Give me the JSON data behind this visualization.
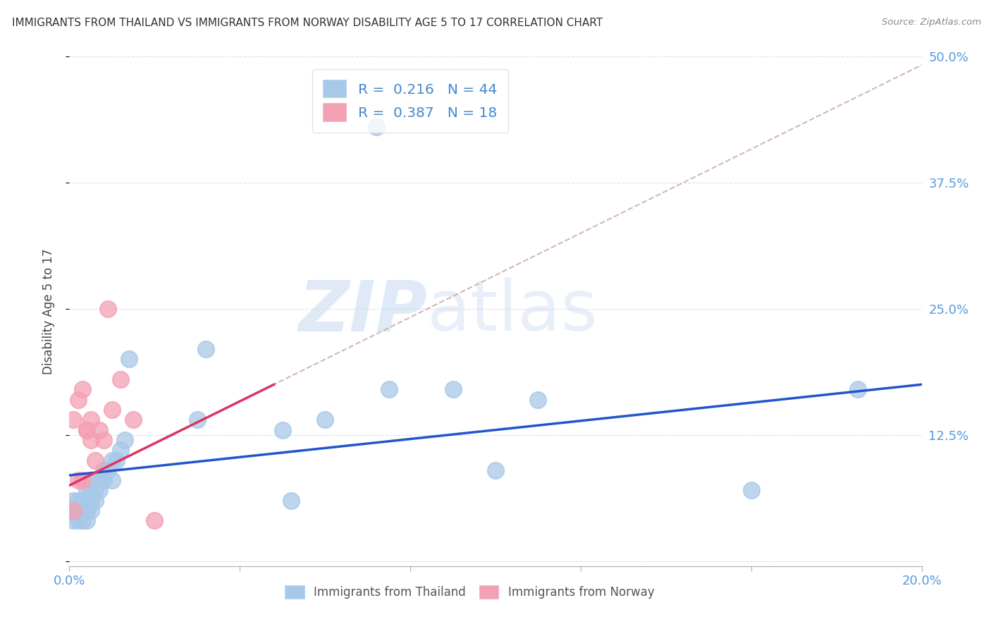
{
  "title": "IMMIGRANTS FROM THAILAND VS IMMIGRANTS FROM NORWAY DISABILITY AGE 5 TO 17 CORRELATION CHART",
  "source": "Source: ZipAtlas.com",
  "ylabel": "Disability Age 5 to 17",
  "right_yticklabels": [
    "",
    "12.5%",
    "25.0%",
    "37.5%",
    "50.0%"
  ],
  "xlim": [
    0.0,
    0.2
  ],
  "ylim": [
    -0.005,
    0.5
  ],
  "thailand_R": 0.216,
  "thailand_N": 44,
  "norway_R": 0.387,
  "norway_N": 18,
  "thailand_color": "#a8c8e8",
  "norway_color": "#f4a0b4",
  "thailand_line_color": "#2255cc",
  "norway_line_color": "#dd3366",
  "diagonal_color": "#ccaaaa",
  "background_color": "#ffffff",
  "watermark_zip": "ZIP",
  "watermark_atlas": "atlas",
  "thailand_x": [
    0.001,
    0.001,
    0.001,
    0.002,
    0.002,
    0.002,
    0.002,
    0.003,
    0.003,
    0.003,
    0.003,
    0.004,
    0.004,
    0.004,
    0.004,
    0.005,
    0.005,
    0.005,
    0.005,
    0.006,
    0.006,
    0.007,
    0.007,
    0.008,
    0.008,
    0.009,
    0.01,
    0.01,
    0.011,
    0.012,
    0.013,
    0.014,
    0.03,
    0.032,
    0.05,
    0.052,
    0.06,
    0.072,
    0.075,
    0.09,
    0.1,
    0.11,
    0.16,
    0.185
  ],
  "thailand_y": [
    0.05,
    0.06,
    0.04,
    0.05,
    0.06,
    0.05,
    0.04,
    0.06,
    0.05,
    0.05,
    0.04,
    0.07,
    0.06,
    0.05,
    0.04,
    0.08,
    0.07,
    0.06,
    0.05,
    0.07,
    0.06,
    0.08,
    0.07,
    0.09,
    0.08,
    0.09,
    0.1,
    0.08,
    0.1,
    0.11,
    0.12,
    0.2,
    0.14,
    0.21,
    0.13,
    0.06,
    0.14,
    0.43,
    0.17,
    0.17,
    0.09,
    0.16,
    0.07,
    0.17
  ],
  "norway_x": [
    0.001,
    0.001,
    0.002,
    0.002,
    0.003,
    0.003,
    0.004,
    0.004,
    0.005,
    0.005,
    0.006,
    0.007,
    0.008,
    0.009,
    0.01,
    0.012,
    0.015,
    0.02
  ],
  "norway_y": [
    0.05,
    0.14,
    0.08,
    0.16,
    0.08,
    0.17,
    0.13,
    0.13,
    0.14,
    0.12,
    0.1,
    0.13,
    0.12,
    0.25,
    0.15,
    0.18,
    0.14,
    0.04
  ],
  "norway_line_xrange": [
    0.0,
    0.2
  ],
  "blue_line_start_y": 0.085,
  "blue_line_end_y": 0.175,
  "pink_line_start_y": 0.075,
  "pink_line_end_x": 0.048,
  "pink_line_end_y": 0.175
}
